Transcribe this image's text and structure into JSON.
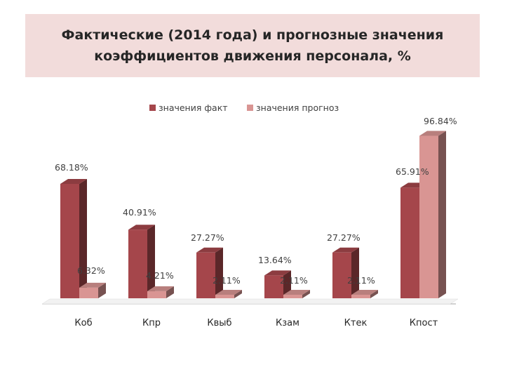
{
  "chart_data": {
    "type": "bar",
    "title": "Фактические (2014 года) и прогнозные значения коэффициентов движения персонала, %",
    "title_lines": [
      "Фактические (2014 года) и прогнозные значения",
      "коэффициентов движения персонала, %"
    ],
    "categories": [
      "Коб",
      "Кпр",
      "Квыб",
      "Кзам",
      "Ктек",
      "Кпост"
    ],
    "series": [
      {
        "name": "значения факт",
        "values": [
          68.18,
          40.91,
          27.27,
          13.64,
          27.27,
          65.91
        ],
        "labels": [
          "68.18%",
          "40.91%",
          "27.27%",
          "13.64%",
          "27.27%",
          "65.91%"
        ],
        "color": "#a5464b"
      },
      {
        "name": "значения прогноз",
        "values": [
          6.32,
          4.21,
          2.11,
          2.11,
          2.11,
          96.84
        ],
        "labels": [
          "6.32%",
          "4.21%",
          "2.11%",
          "2.11%",
          "2.11%",
          "96.84%"
        ],
        "color": "#d99593"
      }
    ],
    "ylim": [
      0,
      100
    ],
    "legend_position": "top",
    "grid": false,
    "style": "3d-column"
  }
}
